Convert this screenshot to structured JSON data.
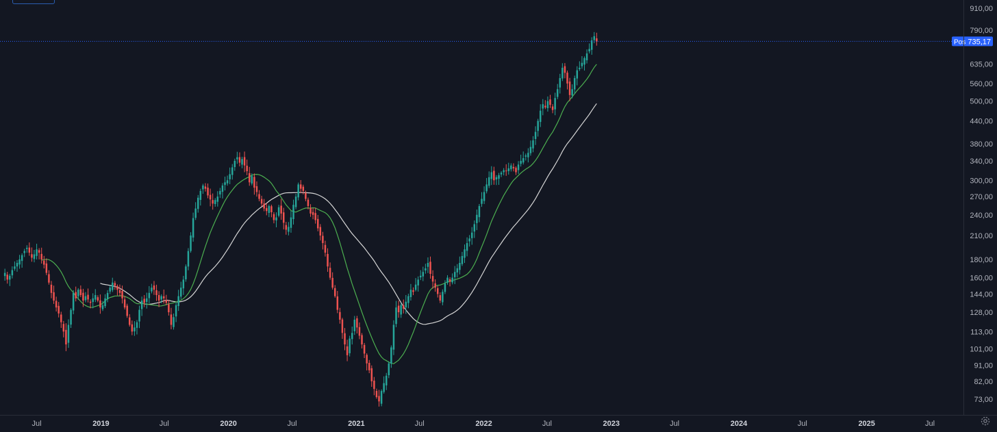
{
  "chart_data": {
    "type": "candlestick",
    "scale": "log",
    "ylim": [
      66,
      960
    ],
    "xlim": [
      "2018-03-18",
      "2025-10-05"
    ],
    "y_ticks": [
      {
        "v": 910,
        "label": "910,00"
      },
      {
        "v": 790,
        "label": "790,00"
      },
      {
        "v": 635,
        "label": "635,00"
      },
      {
        "v": 560,
        "label": "560,00"
      },
      {
        "v": 500,
        "label": "500,00"
      },
      {
        "v": 440,
        "label": "440,00"
      },
      {
        "v": 380,
        "label": "380,00"
      },
      {
        "v": 340,
        "label": "340,00"
      },
      {
        "v": 300,
        "label": "300,00"
      },
      {
        "v": 270,
        "label": "270,00"
      },
      {
        "v": 240,
        "label": "240,00"
      },
      {
        "v": 210,
        "label": "210,00"
      },
      {
        "v": 180,
        "label": "180,00"
      },
      {
        "v": 160,
        "label": "160,00"
      },
      {
        "v": 144,
        "label": "144,00"
      },
      {
        "v": 128,
        "label": "128,00"
      },
      {
        "v": 113,
        "label": "113,00"
      },
      {
        "v": 101,
        "label": "101,00"
      },
      {
        "v": 91,
        "label": "91,00"
      },
      {
        "v": 82,
        "label": "82,00"
      },
      {
        "v": 73,
        "label": "73,00"
      }
    ],
    "x_ticks": [
      {
        "d": "2018-07-01",
        "label": "Jul",
        "bold": false
      },
      {
        "d": "2019-01-01",
        "label": "2019",
        "bold": true
      },
      {
        "d": "2019-07-01",
        "label": "Jul",
        "bold": false
      },
      {
        "d": "2020-01-01",
        "label": "2020",
        "bold": true
      },
      {
        "d": "2020-07-01",
        "label": "Jul",
        "bold": false
      },
      {
        "d": "2021-01-01",
        "label": "2021",
        "bold": true
      },
      {
        "d": "2021-07-01",
        "label": "Jul",
        "bold": false
      },
      {
        "d": "2022-01-01",
        "label": "2022",
        "bold": true
      },
      {
        "d": "2022-07-01",
        "label": "Jul",
        "bold": false
      },
      {
        "d": "2023-01-01",
        "label": "2023",
        "bold": true
      },
      {
        "d": "2023-07-01",
        "label": "Jul",
        "bold": false
      },
      {
        "d": "2024-01-01",
        "label": "2024",
        "bold": true
      },
      {
        "d": "2024-07-01",
        "label": "Jul",
        "bold": false
      },
      {
        "d": "2025-01-01",
        "label": "2025",
        "bold": true
      },
      {
        "d": "2025-07-01",
        "label": "Jul",
        "bold": false
      }
    ],
    "series": [
      {
        "name": "Price",
        "kind": "candles",
        "interval": "weekly",
        "start": "2018-04-01",
        "closes": [
          165,
          158,
          162,
          168,
          172,
          176,
          180,
          185,
          190,
          194,
          188,
          182,
          186,
          192,
          188,
          180,
          174,
          165,
          155,
          145,
          138,
          132,
          127,
          120,
          113,
          104,
          118,
          130,
          145,
          140,
          148,
          143,
          138,
          142,
          139,
          136,
          140,
          143,
          138,
          132,
          134,
          140,
          145,
          150,
          155,
          152,
          148,
          145,
          140,
          132,
          125,
          118,
          113,
          116,
          120,
          130,
          138,
          136,
          140,
          145,
          150,
          148,
          143,
          138,
          142,
          140,
          136,
          128,
          118,
          124,
          134,
          142,
          150,
          158,
          172,
          190,
          210,
          235,
          250,
          268,
          280,
          290,
          284,
          272,
          265,
          258,
          264,
          270,
          280,
          290,
          296,
          300,
          312,
          326,
          340,
          348,
          336,
          344,
          330,
          318,
          296,
          308,
          286,
          278,
          266,
          258,
          250,
          246,
          254,
          244,
          232,
          236,
          252,
          242,
          228,
          218,
          222,
          236,
          256,
          270,
          292,
          284,
          280,
          266,
          254,
          242,
          240,
          232,
          220,
          210,
          200,
          188,
          172,
          160,
          150,
          142,
          130,
          122,
          112,
          104,
          97,
          108,
          112,
          122,
          116,
          110,
          104,
          98,
          92,
          88,
          82,
          78,
          74,
          72,
          77,
          81,
          85,
          92,
          102,
          118,
          132,
          128,
          134,
          131,
          137,
          142,
          148,
          146,
          153,
          158,
          162,
          166,
          170,
          176,
          164,
          156,
          150,
          144,
          138,
          146,
          154,
          160,
          156,
          160,
          166,
          170,
          176,
          184,
          192,
          200,
          206,
          214,
          226,
          240,
          254,
          266,
          278,
          292,
          306,
          316,
          300,
          306,
          310,
          315,
          320,
          318,
          324,
          330,
          324,
          316,
          332,
          340,
          346,
          352,
          358,
          372,
          388,
          410,
          440,
          470,
          490,
          480,
          500,
          488,
          472,
          510,
          540,
          580,
          620,
          600,
          560,
          520,
          540,
          580,
          610,
          620,
          640,
          660,
          680,
          700,
          740,
          760,
          735
        ]
      },
      {
        "name": "MA50",
        "kind": "line",
        "color": "#9e9e9e"
      },
      {
        "name": "MA20",
        "kind": "line",
        "color": "#4caf50"
      }
    ],
    "last_value_label": {
      "prefix": "Pos",
      "value": "735,17",
      "value_num": 735.17
    }
  },
  "colors": {
    "background": "#131722",
    "up": "#26a69a",
    "down": "#ef5350",
    "ma_slow": "#d7d7d7",
    "ma_fast": "#4caf50",
    "price_line": "#2962ff",
    "axis_text": "#b2b5be",
    "badge": "#2962ff"
  },
  "icons": {
    "settings": "gear-icon"
  }
}
